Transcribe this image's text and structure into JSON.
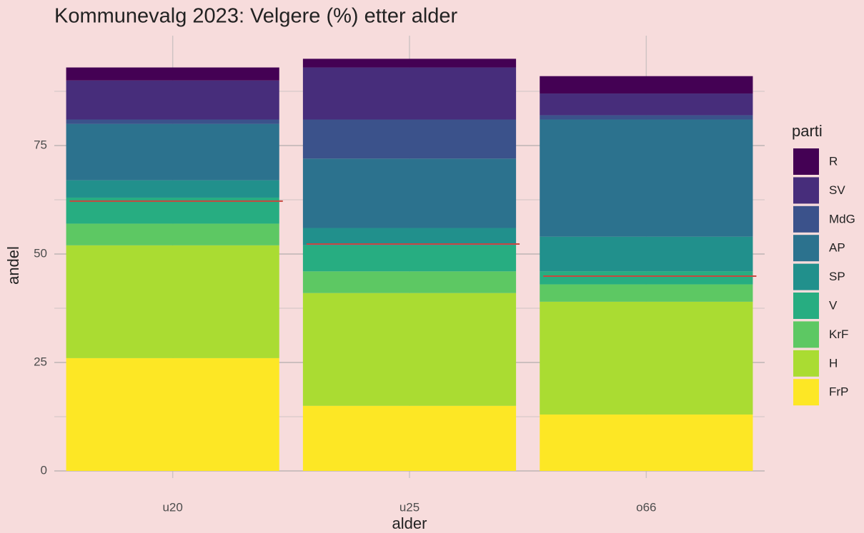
{
  "chart_data": {
    "type": "stacked_bar",
    "title": "Kommunevalg 2023: Velgere (%) etter alder",
    "x_label": "alder",
    "y_label": "andel",
    "legend_title": "parti",
    "categories": [
      "u20",
      "u25",
      "o66"
    ],
    "series": [
      {
        "name": "FrP",
        "color": "#FDE725",
        "values": [
          26,
          15,
          13
        ]
      },
      {
        "name": "H",
        "color": "#AADC32",
        "values": [
          26,
          26,
          26
        ]
      },
      {
        "name": "KrF",
        "color": "#5DC863",
        "values": [
          5,
          5,
          4
        ]
      },
      {
        "name": "V",
        "color": "#27AD81",
        "values": [
          6,
          6,
          3
        ]
      },
      {
        "name": "SP",
        "color": "#21908C",
        "values": [
          4,
          4,
          8
        ]
      },
      {
        "name": "AP",
        "color": "#2C728E",
        "values": [
          13,
          16,
          27
        ]
      },
      {
        "name": "MdG",
        "color": "#3B528B",
        "values": [
          1,
          9,
          1
        ]
      },
      {
        "name": "SV",
        "color": "#472D7B",
        "values": [
          9,
          12,
          5
        ]
      },
      {
        "name": "R",
        "color": "#440154",
        "values": [
          3,
          2,
          4
        ]
      }
    ],
    "reference_lines": {
      "color": "#c8473f",
      "values": [
        62.2,
        52.3,
        44.9
      ]
    },
    "ylim": [
      0,
      95
    ],
    "yticks": [
      0,
      25,
      50,
      75
    ],
    "yminor": [
      12.5,
      37.5,
      62.5,
      87.5
    ],
    "grid": true,
    "legend": "right"
  }
}
